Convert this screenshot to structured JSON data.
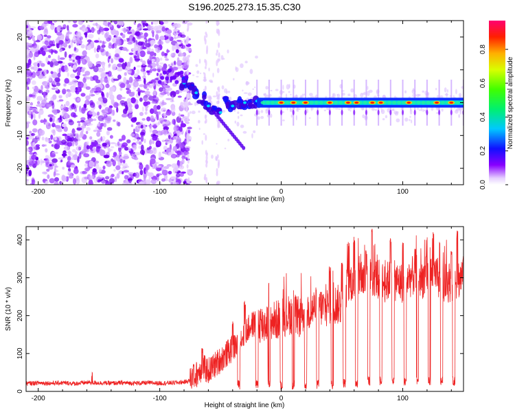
{
  "title": "S196.2025.273.15.35.C30",
  "chart_data": [
    {
      "type": "heatmap",
      "xlabel": "Height of straight line (km)",
      "ylabel": "Frequency (Hz)",
      "xlim": [
        -210,
        150
      ],
      "ylim": [
        -25,
        25
      ],
      "xticks": [
        -200,
        -100,
        0,
        100
      ],
      "yticks": [
        -20,
        -10,
        0,
        10,
        20
      ],
      "colorbar": {
        "label": "Normalized spectral amplitude",
        "range": [
          0,
          0.97
        ],
        "ticks": [
          0.0,
          0.2,
          0.4,
          0.6,
          0.8
        ]
      },
      "features": {
        "noise_region_km": [
          -210,
          -75
        ],
        "transition_region_km": [
          -75,
          -20
        ],
        "signal_trace_freq_hz": 0,
        "transition_trace": [
          {
            "x": -80,
            "y": 6
          },
          {
            "x": -75,
            "y": 4
          },
          {
            "x": -70,
            "y": 3
          },
          {
            "x": -65,
            "y": 1
          },
          {
            "x": -60,
            "y": -1
          },
          {
            "x": -55,
            "y": -2
          },
          {
            "x": -50,
            "y": -3
          },
          {
            "x": -45,
            "y": 0
          },
          {
            "x": -40,
            "y": -1
          },
          {
            "x": -35,
            "y": 0
          },
          {
            "x": -30,
            "y": 0
          },
          {
            "x": -25,
            "y": 0
          },
          {
            "x": -20,
            "y": 0.5
          }
        ],
        "hot_spots_km": [
          0,
          10,
          20,
          40,
          55,
          62,
          75,
          82,
          105,
          128,
          140
        ]
      }
    },
    {
      "type": "line",
      "xlabel": "Height of straight line (km)",
      "ylabel": "SNR (10 * v/v)",
      "xlim": [
        -210,
        150
      ],
      "ylim": [
        0,
        435
      ],
      "xticks": [
        -200,
        -100,
        0,
        100
      ],
      "yticks": [
        0,
        100,
        200,
        300,
        400
      ],
      "series": [
        {
          "name": "SNR",
          "color": "#ee2222",
          "points": [
            [
              -210,
              20
            ],
            [
              -200,
              22
            ],
            [
              -190,
              21
            ],
            [
              -180,
              22
            ],
            [
              -170,
              20
            ],
            [
              -160,
              23
            ],
            [
              -150,
              22
            ],
            [
              -140,
              21
            ],
            [
              -130,
              22
            ],
            [
              -120,
              21
            ],
            [
              -110,
              22
            ],
            [
              -100,
              21
            ],
            [
              -90,
              22
            ],
            [
              -80,
              24
            ],
            [
              -75,
              28
            ],
            [
              -70,
              40
            ],
            [
              -65,
              60
            ],
            [
              -60,
              50
            ],
            [
              -55,
              65
            ],
            [
              -50,
              80
            ],
            [
              -45,
              95
            ],
            [
              -40,
              110
            ],
            [
              -35,
              125
            ],
            [
              -30,
              150
            ],
            [
              -25,
              170
            ],
            [
              -20,
              180
            ],
            [
              -15,
              170
            ],
            [
              -10,
              185
            ],
            [
              -5,
              180
            ],
            [
              0,
              190
            ],
            [
              5,
              195
            ],
            [
              10,
              200
            ],
            [
              15,
              190
            ],
            [
              20,
              205
            ],
            [
              25,
              210
            ],
            [
              30,
              220
            ],
            [
              35,
              215
            ],
            [
              40,
              220
            ],
            [
              45,
              225
            ],
            [
              50,
              220
            ],
            [
              55,
              280
            ],
            [
              60,
              290
            ],
            [
              65,
              300
            ],
            [
              70,
              285
            ],
            [
              75,
              300
            ],
            [
              80,
              290
            ],
            [
              85,
              280
            ],
            [
              90,
              290
            ],
            [
              95,
              285
            ],
            [
              100,
              280
            ],
            [
              105,
              295
            ],
            [
              110,
              300
            ],
            [
              115,
              290
            ],
            [
              120,
              300
            ],
            [
              125,
              305
            ],
            [
              130,
              290
            ],
            [
              135,
              280
            ],
            [
              140,
              285
            ],
            [
              145,
              290
            ],
            [
              150,
              300
            ]
          ],
          "peaks": [
            [
              -156,
              55
            ],
            [
              -72,
              80
            ],
            [
              -65,
              115
            ],
            [
              -40,
              185
            ],
            [
              -30,
              240
            ],
            [
              -20,
              300
            ],
            [
              -10,
              325
            ],
            [
              0,
              265
            ],
            [
              10,
              330
            ],
            [
              20,
              310
            ],
            [
              30,
              300
            ],
            [
              40,
              330
            ],
            [
              50,
              345
            ],
            [
              55,
              395
            ],
            [
              60,
              400
            ],
            [
              70,
              375
            ],
            [
              75,
              430
            ],
            [
              82,
              385
            ],
            [
              90,
              405
            ],
            [
              100,
              395
            ],
            [
              110,
              385
            ],
            [
              120,
              410
            ],
            [
              125,
              425
            ],
            [
              130,
              405
            ],
            [
              140,
              375
            ],
            [
              145,
              425
            ]
          ],
          "dips": [
            [
              -35,
              5
            ],
            [
              -20,
              5
            ],
            [
              -10,
              5
            ],
            [
              0,
              5
            ],
            [
              10,
              5
            ],
            [
              20,
              5
            ],
            [
              30,
              5
            ],
            [
              42,
              5
            ],
            [
              52,
              10
            ],
            [
              62,
              10
            ],
            [
              72,
              15
            ],
            [
              82,
              15
            ],
            [
              92,
              15
            ],
            [
              102,
              15
            ],
            [
              112,
              15
            ],
            [
              122,
              15
            ],
            [
              132,
              15
            ],
            [
              142,
              15
            ]
          ]
        }
      ]
    }
  ]
}
